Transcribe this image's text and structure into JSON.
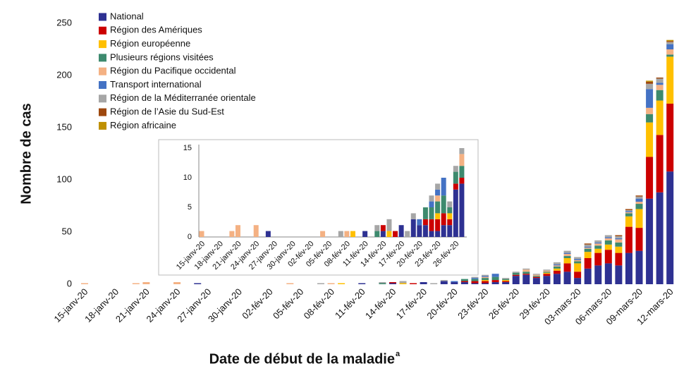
{
  "chart_data": [
    {
      "type": "bar",
      "stacked": true,
      "xlabel": "Date de début de la maladie",
      "xlabel_superscript": "a",
      "ylabel": "Nombre de cas",
      "categories": [
        "15-janv-20",
        null,
        null,
        "18-janv-20",
        null,
        null,
        "21-janv-20",
        null,
        null,
        "24-janv-20",
        null,
        null,
        "27-janv-20",
        null,
        null,
        "30-janv-20",
        null,
        null,
        "02-fév-20",
        null,
        null,
        "05-fév-20",
        null,
        null,
        "08-fév-20",
        null,
        null,
        "11-fév-20",
        null,
        null,
        "14-fév-20",
        null,
        null,
        "17-fév-20",
        null,
        null,
        "20-fév-20",
        null,
        null,
        "23-fév-20",
        null,
        null,
        "26-fév-20",
        null,
        null,
        "29-fév-20",
        null,
        null,
        "03-mars-20",
        null,
        null,
        "06-mars-20",
        null,
        null,
        "09-mars-20",
        null,
        null,
        "12-mars-20"
      ],
      "ylim": [
        0,
        250
      ],
      "yticks": [
        0,
        50,
        100,
        150,
        200,
        250
      ],
      "series": [
        {
          "name": "National",
          "color": "#2e3192",
          "values": [
            0,
            0,
            0,
            0,
            0,
            0,
            0,
            0,
            0,
            0,
            0,
            1,
            0,
            0,
            0,
            0,
            0,
            0,
            0,
            0,
            0,
            0,
            0,
            0,
            0,
            0,
            0,
            1,
            0,
            0,
            1,
            0,
            0,
            2,
            0,
            3,
            2,
            2,
            1,
            1,
            2,
            2,
            8,
            9,
            6,
            8,
            10,
            12,
            6,
            15,
            18,
            20,
            18,
            30,
            32,
            82,
            88,
            108
          ]
        },
        {
          "name": "Région des Amériques",
          "color": "#cc0000",
          "values": [
            0,
            0,
            0,
            0,
            0,
            0,
            0,
            0,
            0,
            0,
            0,
            0,
            0,
            0,
            0,
            0,
            0,
            0,
            0,
            0,
            0,
            0,
            0,
            0,
            0,
            0,
            0,
            0,
            0,
            0,
            1,
            0,
            1,
            0,
            0,
            0,
            0,
            1,
            2,
            2,
            2,
            1,
            1,
            1,
            1,
            2,
            3,
            8,
            6,
            10,
            12,
            13,
            12,
            25,
            22,
            40,
            55,
            65
          ]
        },
        {
          "name": "Région européenne",
          "color": "#ffc000",
          "values": [
            0,
            0,
            0,
            0,
            0,
            0,
            0,
            0,
            0,
            0,
            0,
            0,
            0,
            0,
            0,
            0,
            0,
            0,
            0,
            0,
            0,
            0,
            0,
            0,
            0,
            1,
            0,
            0,
            0,
            0,
            0,
            1,
            0,
            0,
            0,
            0,
            0,
            0,
            0,
            1,
            0,
            1,
            0,
            0,
            0,
            1,
            2,
            5,
            8,
            6,
            4,
            5,
            6,
            10,
            18,
            33,
            33,
            45
          ]
        },
        {
          "name": "Plusieurs régions visitées",
          "color": "#3d8a6e",
          "values": [
            0,
            0,
            0,
            0,
            0,
            0,
            0,
            0,
            0,
            0,
            0,
            0,
            0,
            0,
            0,
            0,
            0,
            0,
            0,
            0,
            0,
            0,
            0,
            0,
            0,
            0,
            0,
            0,
            0,
            1,
            0,
            0,
            0,
            0,
            0,
            0,
            0,
            2,
            2,
            2,
            3,
            1,
            2,
            2,
            1,
            1,
            2,
            2,
            2,
            3,
            3,
            4,
            4,
            3,
            5,
            8,
            10,
            2
          ]
        },
        {
          "name": "Région du Pacifique occidental",
          "color": "#f4b183",
          "values": [
            1,
            0,
            0,
            0,
            0,
            1,
            2,
            0,
            0,
            2,
            0,
            0,
            0,
            0,
            0,
            0,
            0,
            0,
            0,
            0,
            1,
            0,
            0,
            0,
            1,
            0,
            0,
            0,
            0,
            0,
            0,
            0,
            0,
            0,
            0,
            0,
            0,
            0,
            0,
            1,
            0,
            0,
            0,
            2,
            1,
            1,
            1,
            2,
            1,
            1,
            2,
            2,
            3,
            1,
            2,
            6,
            5,
            5
          ]
        },
        {
          "name": "Transport international",
          "color": "#4472c4",
          "values": [
            0,
            0,
            0,
            0,
            0,
            0,
            0,
            0,
            0,
            0,
            0,
            0,
            0,
            0,
            0,
            0,
            0,
            0,
            0,
            0,
            0,
            0,
            0,
            0,
            0,
            0,
            0,
            0,
            0,
            0,
            0,
            0,
            0,
            0,
            0,
            0,
            1,
            0,
            1,
            1,
            3,
            0,
            0,
            0,
            0,
            0,
            1,
            1,
            1,
            1,
            1,
            1,
            1,
            1,
            3,
            18,
            2,
            5
          ]
        },
        {
          "name": "Région de la Méditerranée orientale",
          "color": "#a6a6a6",
          "values": [
            0,
            0,
            0,
            0,
            0,
            0,
            0,
            0,
            0,
            0,
            0,
            0,
            0,
            0,
            0,
            0,
            0,
            0,
            0,
            0,
            0,
            0,
            0,
            1,
            0,
            0,
            0,
            0,
            0,
            1,
            0,
            2,
            0,
            0,
            1,
            1,
            0,
            0,
            1,
            1,
            0,
            1,
            1,
            1,
            1,
            1,
            2,
            2,
            2,
            2,
            2,
            2,
            2,
            1,
            2,
            5,
            4,
            2
          ]
        },
        {
          "name": "Région de l’Asie du Sud-Est",
          "color": "#9e480e",
          "values": [
            0,
            0,
            0,
            0,
            0,
            0,
            0,
            0,
            0,
            0,
            0,
            0,
            0,
            0,
            0,
            0,
            0,
            0,
            0,
            0,
            0,
            0,
            0,
            0,
            0,
            0,
            0,
            0,
            0,
            0,
            0,
            0,
            0,
            0,
            0,
            0,
            0,
            0,
            0,
            0,
            0,
            0,
            0,
            0,
            0,
            0,
            0,
            0,
            0,
            1,
            0,
            0,
            1,
            1,
            1,
            2,
            1,
            1
          ]
        },
        {
          "name": "Région africaine",
          "color": "#bf9000",
          "values": [
            0,
            0,
            0,
            0,
            0,
            0,
            0,
            0,
            0,
            0,
            0,
            0,
            0,
            0,
            0,
            0,
            0,
            0,
            0,
            0,
            0,
            0,
            0,
            0,
            0,
            0,
            0,
            0,
            0,
            0,
            0,
            0,
            0,
            0,
            0,
            0,
            0,
            0,
            0,
            0,
            0,
            0,
            0,
            0,
            0,
            0,
            0,
            0,
            0,
            0,
            0,
            0,
            0,
            0,
            0,
            1,
            0,
            1
          ]
        }
      ]
    },
    {
      "type": "bar",
      "stacked": true,
      "categories": [
        "15-janv-20",
        null,
        null,
        "18-janv-20",
        null,
        null,
        "21-janv-20",
        null,
        null,
        "24-janv-20",
        null,
        null,
        "27-janv-20",
        null,
        null,
        "30-janv-20",
        null,
        null,
        "02-fév-20",
        null,
        null,
        "05-fév-20",
        null,
        null,
        "08-fév-20",
        null,
        null,
        "11-fév-20",
        null,
        null,
        "14-fév-20",
        null,
        null,
        "17-fév-20",
        null,
        null,
        "20-fév-20",
        null,
        null,
        "23-fév-20",
        null,
        null,
        "26-fév-20",
        null
      ],
      "ylim": [
        0,
        15
      ],
      "yticks": [
        0,
        5,
        10,
        15
      ]
    }
  ]
}
